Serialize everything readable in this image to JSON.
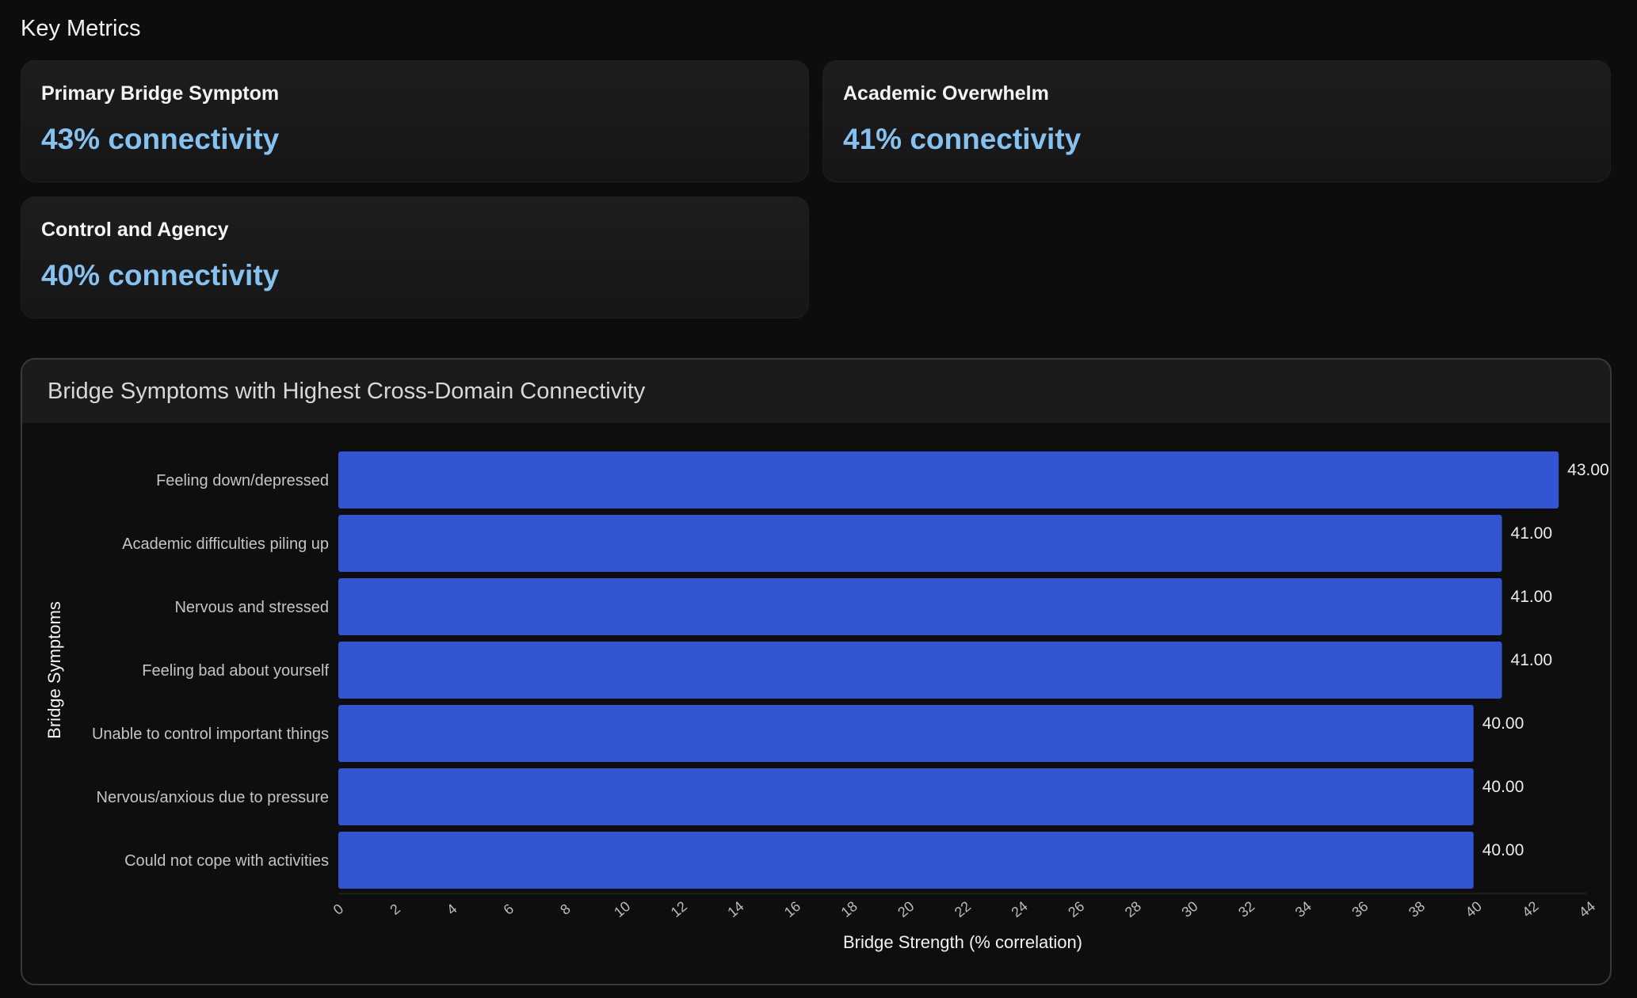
{
  "section_title": "Key Metrics",
  "metrics": [
    {
      "label": "Primary Bridge Symptom",
      "value": "43% connectivity"
    },
    {
      "label": "Academic Overwhelm",
      "value": "41% connectivity"
    },
    {
      "label": "Control and Agency",
      "value": "40% connectivity"
    }
  ],
  "colors": {
    "bar": "#3355d4",
    "metric_value": "#86c2ef"
  },
  "chart_data": {
    "type": "bar",
    "orientation": "horizontal",
    "title": "Bridge Symptoms with Highest Cross-Domain Connectivity",
    "xlabel": "Bridge Strength (% correlation)",
    "ylabel": "Bridge Symptoms",
    "categories": [
      "Feeling down/depressed",
      "Academic difficulties piling up",
      "Nervous and stressed",
      "Feeling bad about yourself",
      "Unable to control important things",
      "Nervous/anxious due to pressure",
      "Could not cope with activities"
    ],
    "values": [
      43,
      41,
      41,
      41,
      40,
      40,
      40
    ],
    "value_labels": [
      "43.00",
      "41.00",
      "41.00",
      "41.00",
      "40.00",
      "40.00",
      "40.00"
    ],
    "xlim": [
      0,
      44
    ],
    "xticks": [
      "0",
      "2",
      "4",
      "6",
      "8",
      "10",
      "12",
      "14",
      "16",
      "18",
      "20",
      "22",
      "24",
      "26",
      "28",
      "30",
      "32",
      "34",
      "36",
      "38",
      "40",
      "42",
      "44"
    ],
    "grid": false,
    "legend": "none"
  }
}
